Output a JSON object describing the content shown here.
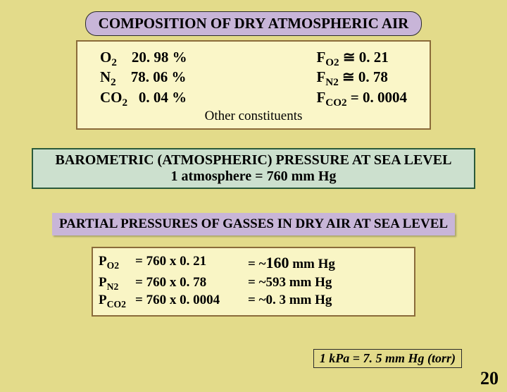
{
  "colors": {
    "page_bg": "#e3db8a",
    "pill_bg": "#c8b5d8",
    "cream_box_bg": "#faf6c8",
    "cream_box_border": "#8a6b3a",
    "green_box_bg": "#cce0ce",
    "green_box_border": "#2a5a3a",
    "text": "#000000"
  },
  "header": {
    "title": "COMPOSITION  OF  DRY ATMOSPHERIC AIR"
  },
  "composition": {
    "left": {
      "o2_label": "O",
      "o2_pct": "20. 98 %",
      "n2_label": "N",
      "n2_pct": "78. 06 %",
      "co2_label": "CO",
      "co2_pct": "0. 04 %"
    },
    "right": {
      "fo2": "≅ 0. 21",
      "fn2": "≅ 0. 78",
      "fco2": "= 0. 0004"
    },
    "other": "Other constituents"
  },
  "barometric": {
    "line1": "BAROMETRIC (ATMOSPHERIC) PRESSURE AT SEA LEVEL",
    "line2": "1 atmosphere = 760 mm Hg"
  },
  "partial": {
    "title": "PARTIAL PRESSURES OF GASSES IN DRY AIR AT SEA LEVEL"
  },
  "calc": {
    "r1_m": "=  760 x 0. 21",
    "r1_r_pre": "=  ~",
    "r1_r_big": "160",
    "r1_r_post": " mm Hg",
    "r2_m": "=  760 x 0. 78",
    "r2_r": "=  ~593 mm  Hg",
    "r3_m": "= 760 x 0. 0004",
    "r3_r": "=      ~0. 3 mm Hg"
  },
  "note": "1 kPa = 7. 5 mm Hg (torr)",
  "slide_number": "20"
}
